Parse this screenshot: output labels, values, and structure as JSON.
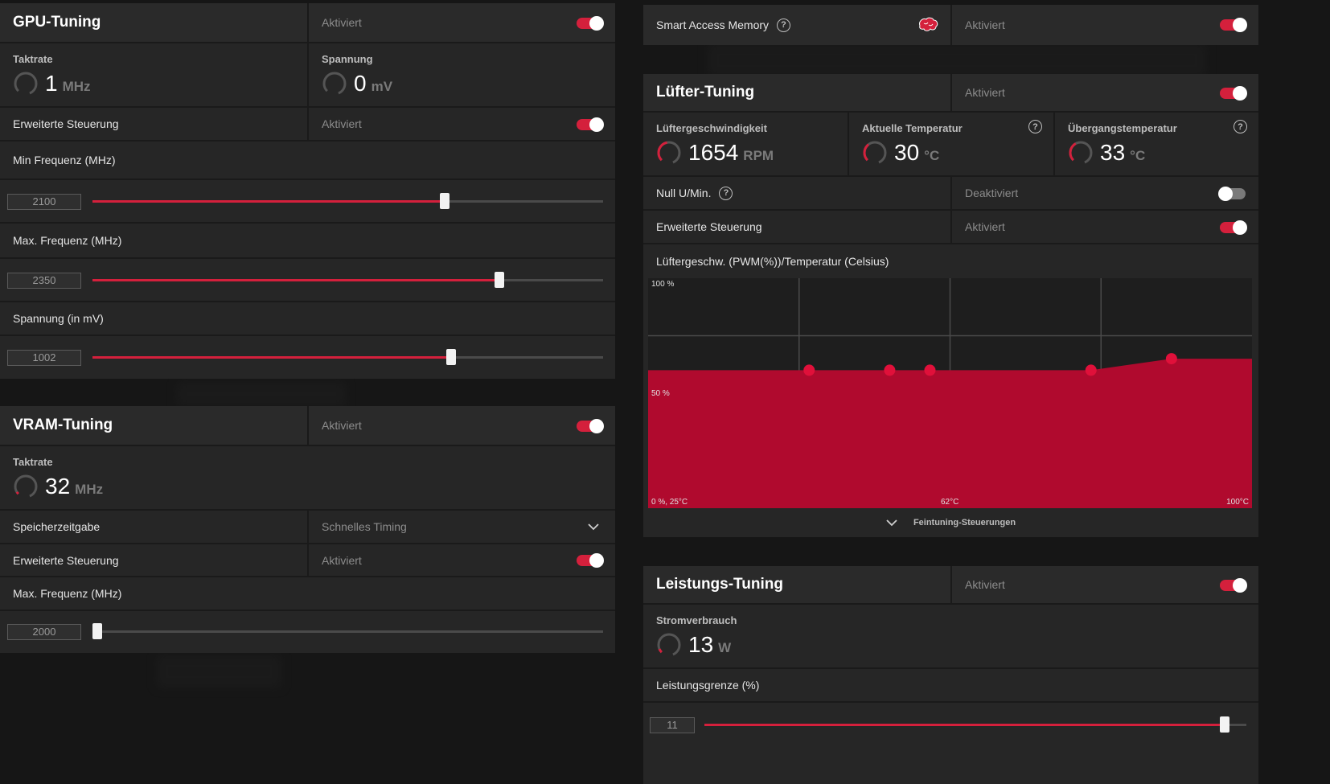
{
  "gpu_tuning": {
    "title": "GPU-Tuning",
    "status": "Aktiviert",
    "clock_label": "Taktrate",
    "clock_value": "1",
    "clock_unit": "MHz",
    "voltage_label": "Spannung",
    "voltage_value": "0",
    "voltage_unit": "mV",
    "advanced_label": "Erweiterte Steuerung",
    "advanced_status": "Aktiviert",
    "min_freq_label": "Min Frequenz (MHz)",
    "min_freq_value": "2100",
    "min_freq_fraction": 0.69,
    "max_freq_label": "Max. Frequenz (MHz)",
    "max_freq_value": "2350",
    "max_freq_fraction": 0.797,
    "voltage_slider_label": "Spannung (in mV)",
    "voltage_slider_value": "1002",
    "voltage_slider_fraction": 0.703
  },
  "vram_tuning": {
    "title": "VRAM-Tuning",
    "status": "Aktiviert",
    "clock_label": "Taktrate",
    "clock_value": "32",
    "clock_unit": "MHz",
    "timing_label": "Speicherzeitgabe",
    "timing_value": "Schnelles Timing",
    "advanced_label": "Erweiterte Steuerung",
    "advanced_status": "Aktiviert",
    "max_freq_label": "Max. Frequenz (MHz)",
    "max_freq_value": "2000",
    "max_freq_fraction": 0.01
  },
  "sam": {
    "label": "Smart Access Memory",
    "status": "Aktiviert"
  },
  "fan_tuning": {
    "title": "Lüfter-Tuning",
    "status": "Aktiviert",
    "speed_label": "Lüftergeschwindigkeit",
    "speed_value": "1654",
    "speed_unit": "RPM",
    "temp_label": "Aktuelle Temperatur",
    "temp_value": "30",
    "temp_unit": "°C",
    "junction_label": "Übergangstemperatur",
    "junction_value": "33",
    "junction_unit": "°C",
    "zero_rpm_label": "Null U/Min.",
    "zero_rpm_status": "Deaktiviert",
    "advanced_label": "Erweiterte Steuerung",
    "advanced_status": "Aktiviert",
    "curve_label": "Lüftergeschw. (PWM(%))/Temperatur (Celsius)",
    "fine_tune_label": "Feintuning-Steuerungen"
  },
  "fan_curve": {
    "y_top_label": "100 %",
    "y_mid_label": "50 %",
    "x_left_label": "0 %, 25°C",
    "x_mid_label": "62°C",
    "x_right_label": "100°C",
    "x_range": [
      25,
      100
    ],
    "y_range": [
      0,
      100
    ],
    "points": [
      {
        "temp": 25,
        "pwm": 60
      },
      {
        "temp": 45,
        "pwm": 60
      },
      {
        "temp": 55,
        "pwm": 60
      },
      {
        "temp": 60,
        "pwm": 60
      },
      {
        "temp": 80,
        "pwm": 60
      },
      {
        "temp": 90,
        "pwm": 65
      },
      {
        "temp": 100,
        "pwm": 65
      }
    ],
    "handle_indices": [
      1,
      2,
      3,
      4,
      5
    ],
    "fill_color": "#b00a2e",
    "handle_color": "#e0103a"
  },
  "power_tuning": {
    "title": "Leistungs-Tuning",
    "status": "Aktiviert",
    "power_label": "Stromverbrauch",
    "power_value": "13",
    "power_unit": "W",
    "limit_label": "Leistungsgrenze (%)",
    "limit_value": "11",
    "limit_fraction": 0.96
  },
  "colors": {
    "accent": "#d4203c",
    "panel": "#262626",
    "background": "#161616"
  }
}
